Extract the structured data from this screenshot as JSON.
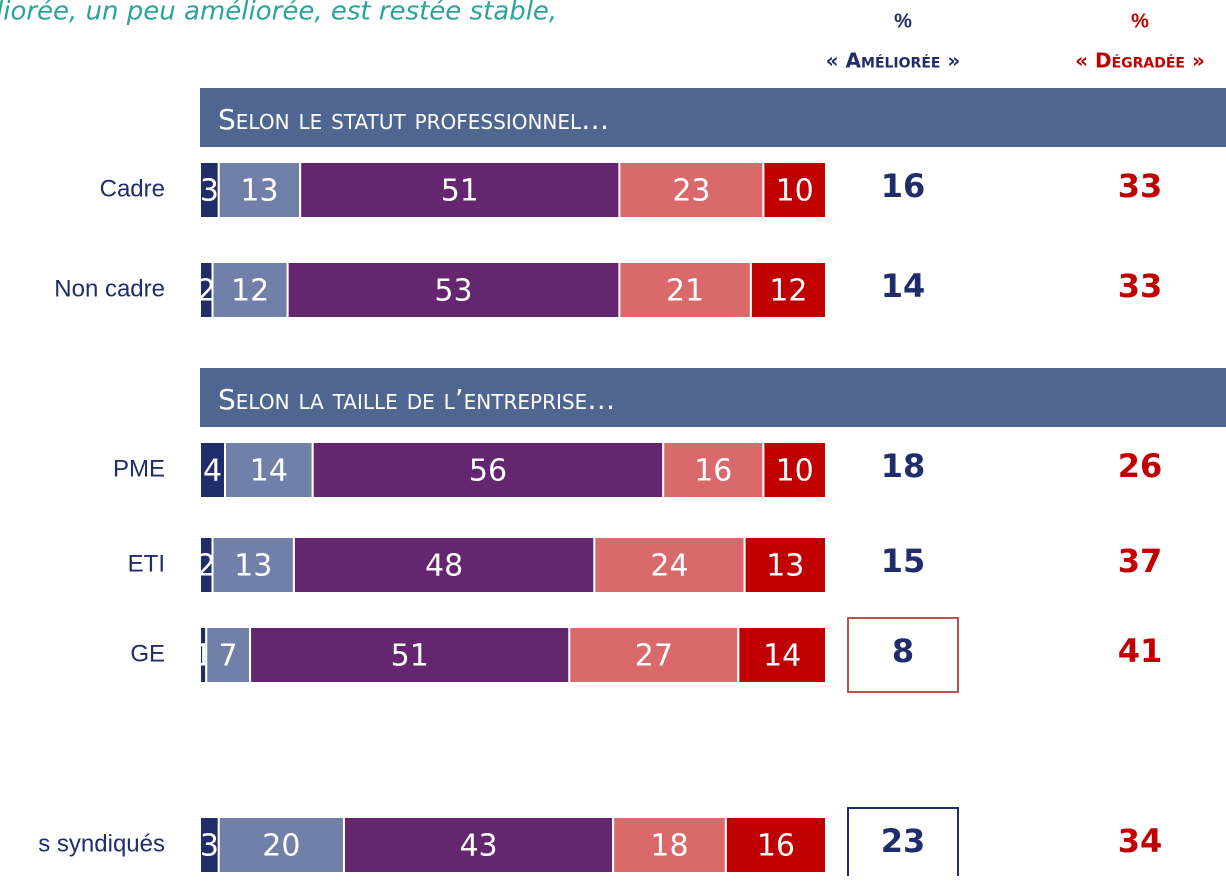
{
  "chart_data": {
    "type": "bar",
    "orientation": "horizontal",
    "stacked": true,
    "subtitle": "liorée, un peu améliorée, est restée stable,",
    "xlim": [
      0,
      100
    ],
    "categories": [
      "Cadre",
      "Non cadre",
      "PME",
      "ETI",
      "GE",
      "s syndiqués"
    ],
    "series": [
      {
        "color": "#1f2d6b",
        "values": [
          3,
          2,
          4,
          2,
          1,
          3
        ]
      },
      {
        "color": "#7080a8",
        "values": [
          13,
          12,
          14,
          13,
          7,
          20
        ]
      },
      {
        "color": "#63266f",
        "values": [
          51,
          53,
          56,
          48,
          51,
          43
        ]
      },
      {
        "color": "#d9696b",
        "values": [
          23,
          21,
          16,
          24,
          27,
          18
        ]
      },
      {
        "color": "#c00000",
        "values": [
          10,
          12,
          10,
          13,
          14,
          16
        ]
      }
    ],
    "sections": [
      "Selon le statut professionnel…",
      "Selon la taille de l’entreprise…"
    ],
    "summary_columns": [
      {
        "symbol": "%",
        "label": "« Améliorée »",
        "color": "#1f2d6b",
        "values": [
          16,
          14,
          18,
          15,
          8,
          23
        ]
      },
      {
        "symbol": "%",
        "label": "« Dégradée »",
        "color": "#c00000",
        "values": [
          33,
          33,
          26,
          37,
          41,
          34
        ]
      }
    ],
    "boxes": [
      {
        "row": 4,
        "color": "#c0504d"
      },
      {
        "row": 5,
        "color": "#1f2d6b"
      }
    ]
  }
}
